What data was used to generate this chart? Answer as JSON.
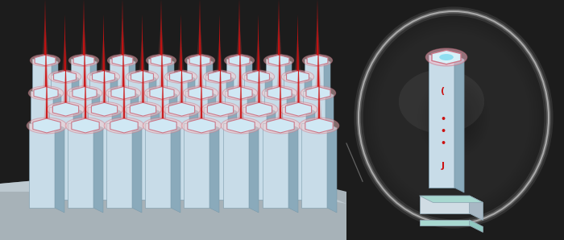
{
  "bg_color": "#1c1c1c",
  "nw_front": "#c8dce8",
  "nw_right": "#8aaabb",
  "nw_top": "#d8ecf4",
  "hex_fill": "#d0e8f4",
  "hex_edge": "#cc7788",
  "laser_color": "#cc1111",
  "sub_color": "#c0cdd4",
  "sub_right": "#8fa8b2",
  "sub_edge": "#90a8b4",
  "bubble_fill": "#363636",
  "bubble_edge": "#aaaaaa",
  "qw_color": "#cc1111",
  "teal_layer": "#a8d8d0",
  "nw_edge": "#7a9aaa"
}
